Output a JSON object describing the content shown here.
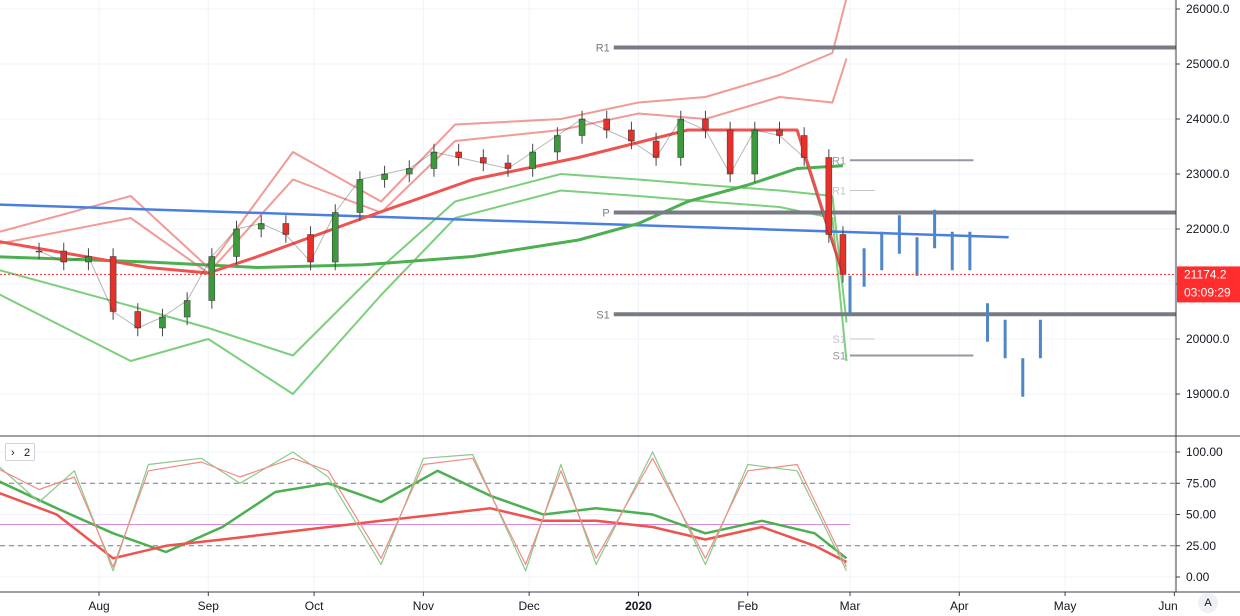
{
  "chart_data": {
    "type": "line",
    "title": "",
    "price_axis": {
      "ticks": [
        26000,
        25000,
        24000,
        23000,
        22000,
        21000,
        20000,
        19000
      ],
      "tick_labels": [
        "26000.0",
        "25000.0",
        "24000.0",
        "23000.0",
        "22000.0",
        "21000.0",
        "20000.0",
        "19000.0"
      ]
    },
    "time_axis": {
      "labels": [
        "Aug",
        "Sep",
        "Oct",
        "Nov",
        "Dec",
        "2020",
        "Feb",
        "Mar",
        "Apr",
        "May",
        "Jun"
      ]
    },
    "last_price": {
      "value": "21174.2",
      "countdown": "03:09:29",
      "color": "#ff2d2d"
    },
    "close_series": {
      "dates": [
        "2019-07-15",
        "2019-07-22",
        "2019-07-29",
        "2019-08-05",
        "2019-08-12",
        "2019-08-19",
        "2019-08-26",
        "2019-09-02",
        "2019-09-09",
        "2019-09-16",
        "2019-09-23",
        "2019-09-30",
        "2019-10-07",
        "2019-10-14",
        "2019-10-21",
        "2019-10-28",
        "2019-11-04",
        "2019-11-11",
        "2019-11-18",
        "2019-11-25",
        "2019-12-02",
        "2019-12-09",
        "2019-12-16",
        "2019-12-23",
        "2019-12-30",
        "2020-01-06",
        "2020-01-13",
        "2020-01-20",
        "2020-01-27",
        "2020-02-03",
        "2020-02-10",
        "2020-02-17",
        "2020-02-24",
        "2020-02-28"
      ],
      "values": [
        21600,
        21400,
        21500,
        20500,
        20200,
        20400,
        20700,
        21500,
        22000,
        22100,
        21900,
        21400,
        22300,
        22900,
        23000,
        23100,
        23400,
        23300,
        23200,
        23100,
        23400,
        23700,
        24000,
        23800,
        23600,
        23300,
        24000,
        23800,
        23000,
        23800,
        23700,
        23300,
        21900,
        21174
      ]
    },
    "overlays": [
      {
        "name": "",
        "type": "trendline",
        "color": "#4a7fe0",
        "points": [
          [
            "2019-07-01",
            22450
          ],
          [
            "2020-04-15",
            21850
          ]
        ]
      },
      {
        "name": "",
        "type": "moving-average",
        "color": "#4caf50",
        "dates": [
          "2019-07-01",
          "2019-08-15",
          "2019-09-15",
          "2019-10-15",
          "2019-11-15",
          "2019-12-15",
          "2020-01-01",
          "2020-01-15",
          "2020-02-01",
          "2020-02-15",
          "2020-02-28"
        ],
        "values": [
          21500,
          21400,
          21300,
          21350,
          21500,
          21800,
          22100,
          22500,
          22800,
          23100,
          23150
        ]
      },
      {
        "name": "",
        "type": "moving-average",
        "color": "#ef5350",
        "dates": [
          "2019-07-01",
          "2019-08-15",
          "2019-09-01",
          "2019-09-15",
          "2019-10-15",
          "2019-11-15",
          "2019-12-15",
          "2020-01-15",
          "2020-02-15",
          "2020-02-28"
        ],
        "values": [
          21800,
          21300,
          21200,
          21500,
          22200,
          22900,
          23300,
          23800,
          23800,
          21174
        ]
      }
    ],
    "bands": {
      "upper_outer": {
        "color": "#f29a96",
        "dates": [
          "2019-07-01",
          "2019-08-10",
          "2019-09-01",
          "2019-09-25",
          "2019-10-20",
          "2019-11-10",
          "2019-12-10",
          "2020-01-01",
          "2020-01-20",
          "2020-02-10",
          "2020-02-25",
          "2020-02-29"
        ],
        "values": [
          21900,
          22600,
          21300,
          23400,
          22500,
          23900,
          24000,
          24300,
          24400,
          24800,
          25200,
          26200
        ]
      },
      "upper_inner": {
        "color": "#f29a96",
        "dates": [
          "2019-07-01",
          "2019-08-10",
          "2019-09-01",
          "2019-09-25",
          "2019-10-20",
          "2019-11-10",
          "2019-12-10",
          "2020-01-01",
          "2020-01-20",
          "2020-02-10",
          "2020-02-25",
          "2020-02-29"
        ],
        "values": [
          21700,
          22200,
          21200,
          22900,
          22300,
          23600,
          23800,
          24100,
          24000,
          24400,
          24300,
          25100
        ]
      },
      "lower_inner": {
        "color": "#7ccf7c",
        "dates": [
          "2019-07-01",
          "2019-08-10",
          "2019-09-01",
          "2019-09-25",
          "2019-10-20",
          "2019-11-10",
          "2019-12-10",
          "2020-01-01",
          "2020-01-20",
          "2020-02-10",
          "2020-02-25",
          "2020-02-29"
        ],
        "values": [
          21300,
          20600,
          20200,
          19700,
          21300,
          22500,
          23000,
          22900,
          22800,
          22700,
          22600,
          20300
        ]
      },
      "lower_outer": {
        "color": "#7ccf7c",
        "dates": [
          "2019-07-01",
          "2019-08-10",
          "2019-09-01",
          "2019-09-25",
          "2019-10-20",
          "2019-11-10",
          "2019-12-10",
          "2020-01-01",
          "2020-01-20",
          "2020-02-10",
          "2020-02-25",
          "2020-02-29"
        ],
        "values": [
          20900,
          19600,
          20000,
          19000,
          20800,
          22200,
          22700,
          22600,
          22500,
          22400,
          22200,
          19600
        ]
      }
    },
    "pivot_levels": [
      {
        "label": "R1",
        "value": 25300,
        "start": "2019-12-25",
        "end": "2020-06-15",
        "color": "#787b86",
        "width": 4
      },
      {
        "label": "P",
        "value": 22300,
        "start": "2019-12-25",
        "end": "2020-06-15",
        "color": "#787b86",
        "width": 4
      },
      {
        "label": "S1",
        "value": 20450,
        "start": "2019-12-25",
        "end": "2020-06-15",
        "color": "#787b86",
        "width": 4
      },
      {
        "label": "R1",
        "value": 23250,
        "start": "2020-03-01",
        "end": "2020-04-05",
        "color": "#9598a1",
        "width": 2
      },
      {
        "label": "S1",
        "value": 19700,
        "start": "2020-03-01",
        "end": "2020-04-05",
        "color": "#9598a1",
        "width": 2
      },
      {
        "label": "R1",
        "value": 22700,
        "start": "2020-03-01",
        "end": "2020-03-08",
        "color": "#c3c5cc",
        "width": 1
      },
      {
        "label": "S1",
        "value": 20000,
        "start": "2020-03-01",
        "end": "2020-03-08",
        "color": "#c3c5cc",
        "width": 1
      }
    ],
    "projection": {
      "color": "#4f86c6",
      "dates": [
        "2020-03-01",
        "2020-03-05",
        "2020-03-10",
        "2020-03-15",
        "2020-03-20",
        "2020-03-25",
        "2020-03-30",
        "2020-04-04",
        "2020-04-09",
        "2020-04-14",
        "2020-04-19",
        "2020-04-24"
      ],
      "values": [
        20800,
        21300,
        21600,
        21900,
        21500,
        22000,
        21600,
        21600,
        20300,
        20000,
        19300,
        20000
      ]
    },
    "oscillator": {
      "ticks": [
        100,
        75,
        50,
        25,
        0
      ],
      "tick_labels": [
        "100.00",
        "75.00",
        "50.00",
        "25.00",
        "0.00"
      ],
      "levels": [
        {
          "value": 75,
          "color": "#787b86",
          "style": "dashed"
        },
        {
          "value": 42,
          "color": "#d98ad9",
          "style": "solid"
        },
        {
          "value": 25,
          "color": "#787b86",
          "style": "dashed"
        }
      ],
      "series": [
        {
          "name": "",
          "color": "#4caf50",
          "dates": [
            "2019-07-01",
            "2019-07-20",
            "2019-08-05",
            "2019-08-20",
            "2019-09-05",
            "2019-09-20",
            "2019-10-05",
            "2019-10-20",
            "2019-11-05",
            "2019-11-20",
            "2019-12-05",
            "2019-12-20",
            "2020-01-05",
            "2020-01-20",
            "2020-02-05",
            "2020-02-20",
            "2020-02-29"
          ],
          "values": [
            80,
            55,
            35,
            20,
            40,
            68,
            75,
            60,
            85,
            65,
            50,
            55,
            50,
            35,
            45,
            35,
            15
          ]
        },
        {
          "name": "",
          "color": "#ef5350",
          "dates": [
            "2019-07-01",
            "2019-07-20",
            "2019-08-05",
            "2019-08-20",
            "2019-09-05",
            "2019-09-20",
            "2019-10-05",
            "2019-10-20",
            "2019-11-05",
            "2019-11-20",
            "2019-12-05",
            "2019-12-20",
            "2020-01-05",
            "2020-01-20",
            "2020-02-05",
            "2020-02-20",
            "2020-02-29"
          ],
          "values": [
            70,
            50,
            15,
            25,
            30,
            35,
            40,
            45,
            50,
            55,
            45,
            45,
            40,
            30,
            40,
            25,
            12
          ]
        },
        {
          "name": "",
          "color": "#8bc98b",
          "dates": [
            "2019-07-01",
            "2019-07-15",
            "2019-07-25",
            "2019-08-05",
            "2019-08-15",
            "2019-08-30",
            "2019-09-10",
            "2019-09-25",
            "2019-10-05",
            "2019-10-20",
            "2019-11-01",
            "2019-11-15",
            "2019-11-30",
            "2019-12-10",
            "2019-12-20",
            "2020-01-05",
            "2020-01-20",
            "2020-02-01",
            "2020-02-15",
            "2020-02-29"
          ],
          "values": [
            95,
            60,
            85,
            5,
            90,
            95,
            75,
            100,
            80,
            10,
            95,
            98,
            5,
            90,
            10,
            100,
            10,
            90,
            85,
            5
          ]
        },
        {
          "name": "",
          "color": "#f28b87",
          "dates": [
            "2019-07-01",
            "2019-07-15",
            "2019-07-25",
            "2019-08-05",
            "2019-08-15",
            "2019-08-30",
            "2019-09-10",
            "2019-09-25",
            "2019-10-05",
            "2019-10-20",
            "2019-11-01",
            "2019-11-15",
            "2019-11-30",
            "2019-12-10",
            "2019-12-20",
            "2020-01-05",
            "2020-01-20",
            "2020-02-01",
            "2020-02-15",
            "2020-02-29"
          ],
          "values": [
            90,
            70,
            80,
            8,
            85,
            92,
            80,
            95,
            85,
            15,
            90,
            95,
            10,
            85,
            15,
            95,
            15,
            85,
            90,
            8
          ]
        }
      ],
      "panel_tag": "2"
    },
    "grid": true,
    "legend": "none"
  },
  "ui": {
    "corner_badge": "A",
    "collapse_icon": "chevron-right-icon"
  }
}
